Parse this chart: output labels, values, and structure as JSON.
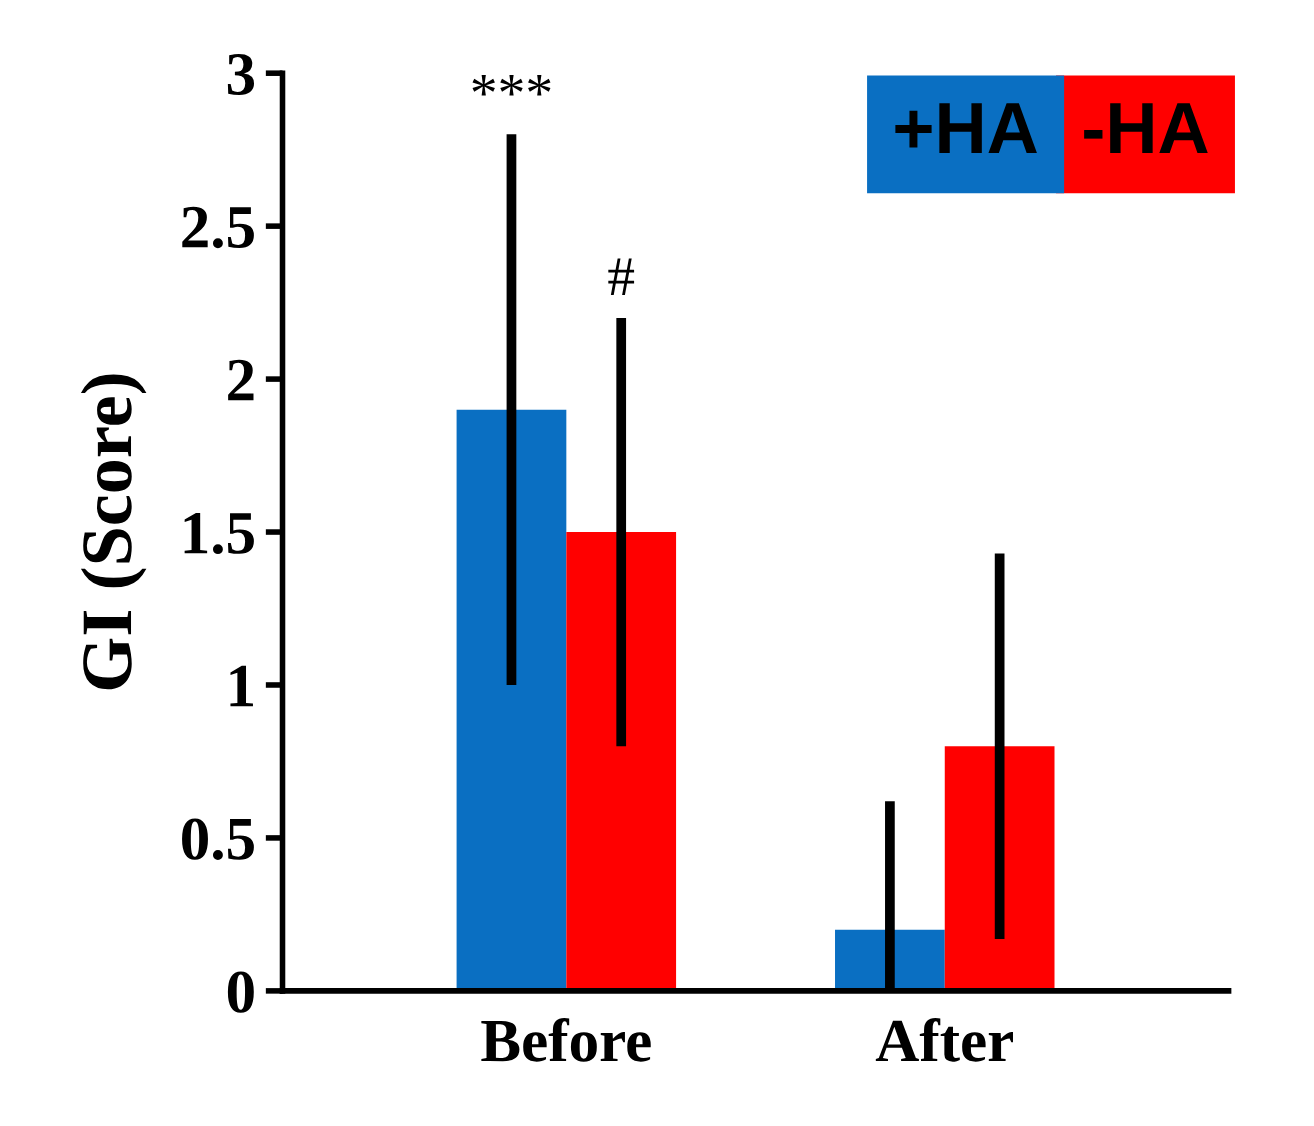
{
  "chart_data": {
    "type": "bar",
    "ylabel": "GI (Score)",
    "categories": [
      "Before",
      "After"
    ],
    "series": [
      {
        "name": "+HA",
        "color": "#0a6fc2",
        "values": [
          1.9,
          0.2
        ],
        "errors": [
          0.9,
          [
            0,
            0.62
          ]
        ]
      },
      {
        "name": "-HA",
        "color": "#ff0000",
        "values": [
          1.5,
          0.8
        ],
        "errors": [
          0.7,
          0.63
        ]
      }
    ],
    "ylim": [
      0,
      3
    ],
    "yticks": [
      0,
      0.5,
      1,
      1.5,
      2,
      2.5,
      3
    ],
    "grid": false,
    "legend": "top right",
    "annotations": [
      "***",
      "#"
    ]
  }
}
